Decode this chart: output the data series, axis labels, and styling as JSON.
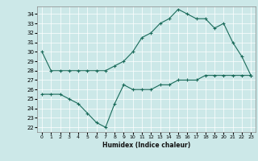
{
  "title": "",
  "xlabel": "Humidex (Indice chaleur)",
  "ylabel": "",
  "bg_color": "#cce8e8",
  "line_color": "#1a6b5a",
  "line1_x": [
    0,
    1,
    2,
    3,
    4,
    5,
    6,
    7,
    8,
    9,
    10,
    11,
    12,
    13,
    14,
    15,
    16,
    17,
    18,
    19,
    20,
    21,
    22,
    23
  ],
  "line1_y": [
    30,
    28,
    28,
    28,
    28,
    28,
    28,
    28,
    28.5,
    29.0,
    30.0,
    31.5,
    32.0,
    33.0,
    33.5,
    34.5,
    34.0,
    33.5,
    33.5,
    32.5,
    33.0,
    31.0,
    29.5,
    27.5
  ],
  "line2_x": [
    0,
    1,
    2,
    3,
    4,
    5,
    6,
    7,
    8,
    9,
    10,
    11,
    12,
    13,
    14,
    15,
    16,
    17,
    18,
    19,
    20,
    21,
    22,
    23
  ],
  "line2_y": [
    25.5,
    25.5,
    25.5,
    25.0,
    24.5,
    23.5,
    22.5,
    22.0,
    24.5,
    26.5,
    26.0,
    26.0,
    26.0,
    26.5,
    26.5,
    27.0,
    27.0,
    27.0,
    27.5,
    27.5,
    27.5,
    27.5,
    27.5,
    27.5
  ],
  "xlim": [
    -0.5,
    23.5
  ],
  "ylim": [
    21.5,
    34.8
  ],
  "yticks": [
    22,
    23,
    24,
    25,
    26,
    27,
    28,
    29,
    30,
    31,
    32,
    33,
    34
  ],
  "xticks": [
    0,
    1,
    2,
    3,
    4,
    5,
    6,
    7,
    8,
    9,
    10,
    11,
    12,
    13,
    14,
    15,
    16,
    17,
    18,
    19,
    20,
    21,
    22,
    23
  ]
}
